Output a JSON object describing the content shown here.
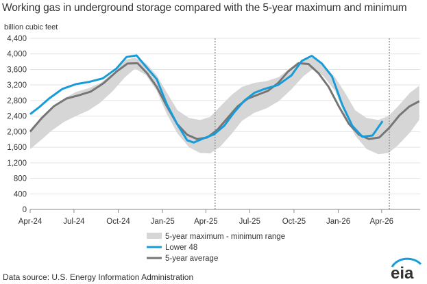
{
  "header": {
    "title": "Working gas in underground  storage compared with the 5-year maximum and minimum",
    "y_unit": "billion cubic feet"
  },
  "footer": {
    "source": "Data source:  U.S. Energy Information Administration",
    "logo_text": "eia"
  },
  "colors": {
    "range_band": "#d6d6d6",
    "lower48": "#189cd9",
    "five_year_avg": "#767676",
    "grid": "#e3e3e3",
    "divider": "#999999"
  },
  "chart_data": {
    "type": "line",
    "title": "Working gas in underground  storage compared with the 5-year maximum and minimum",
    "ylabel": "billion cubic feet",
    "xlabel": "",
    "ylim": [
      0,
      4400
    ],
    "yticks": [
      0,
      400,
      800,
      1200,
      1600,
      2000,
      2400,
      2800,
      3200,
      3600,
      4000,
      4400
    ],
    "ytick_labels": [
      "0",
      "400",
      "800",
      "1,200",
      "1,600",
      "2,000",
      "2,400",
      "2,800",
      "3,200",
      "3,600",
      "4,000",
      "4,400"
    ],
    "xlim": [
      "2024-04-01",
      "2026-06-20"
    ],
    "xticks": [
      "2024-04-01",
      "2024-07-01",
      "2024-10-01",
      "2025-01-01",
      "2025-04-01",
      "2025-07-01",
      "2025-10-01",
      "2026-01-01",
      "2026-04-01"
    ],
    "xtick_labels": [
      "Apr-24",
      "Jul-24",
      "Oct-24",
      "Jan-25",
      "Apr-25",
      "Jul-25",
      "Oct-25",
      "Jan-26",
      "Apr-26"
    ],
    "grid": "horizontal",
    "legend_position": "bottom-center",
    "dividers": [
      "2025-04-20",
      "2026-04-17"
    ],
    "series": [
      {
        "name": "5-year maximum - minimum range",
        "kind": "band",
        "x": [
          "2024-04-01",
          "2024-04-25",
          "2024-05-15",
          "2024-06-10",
          "2024-07-05",
          "2024-08-01",
          "2024-08-25",
          "2024-09-20",
          "2024-10-15",
          "2024-11-05",
          "2024-11-28",
          "2024-12-20",
          "2025-01-10",
          "2025-02-01",
          "2025-02-25",
          "2025-03-20",
          "2025-04-10",
          "2025-05-01",
          "2025-05-25",
          "2025-06-15",
          "2025-07-10",
          "2025-08-05",
          "2025-08-30",
          "2025-09-25",
          "2025-10-20",
          "2025-11-10",
          "2025-12-01",
          "2025-12-25",
          "2026-01-15",
          "2026-02-05",
          "2026-03-01",
          "2026-03-25",
          "2026-04-15",
          "2026-05-05",
          "2026-05-30",
          "2026-06-18"
        ],
        "max": [
          2050,
          2380,
          2600,
          2850,
          3020,
          3120,
          3250,
          3500,
          3850,
          3900,
          3750,
          3450,
          3000,
          2550,
          2350,
          2300,
          2380,
          2650,
          2950,
          3150,
          3250,
          3300,
          3400,
          3650,
          3850,
          3900,
          3700,
          3400,
          3000,
          2550,
          2350,
          2300,
          2400,
          2650,
          3000,
          3180
        ],
        "min": [
          1550,
          1800,
          2020,
          2250,
          2400,
          2550,
          2750,
          3050,
          3400,
          3620,
          3450,
          3050,
          2450,
          1950,
          1600,
          1450,
          1440,
          1620,
          1950,
          2280,
          2480,
          2600,
          2780,
          3080,
          3420,
          3620,
          3430,
          3050,
          2420,
          1900,
          1550,
          1420,
          1450,
          1650,
          1980,
          2300
        ]
      },
      {
        "name": "Lower 48",
        "kind": "line",
        "x": [
          "2024-04-01",
          "2024-04-19",
          "2024-05-10",
          "2024-06-07",
          "2024-07-05",
          "2024-08-02",
          "2024-08-30",
          "2024-09-27",
          "2024-10-18",
          "2024-11-08",
          "2024-11-29",
          "2024-12-20",
          "2025-01-10",
          "2025-01-31",
          "2025-02-21",
          "2025-03-07",
          "2025-03-28",
          "2025-04-18",
          "2025-05-09",
          "2025-05-30",
          "2025-06-20",
          "2025-07-11",
          "2025-08-01",
          "2025-08-29",
          "2025-09-26",
          "2025-10-17",
          "2025-11-07",
          "2025-11-28",
          "2025-12-19",
          "2026-01-09",
          "2026-01-30",
          "2026-02-20",
          "2026-03-13",
          "2026-04-03"
        ],
        "values": [
          2450,
          2620,
          2850,
          3100,
          3220,
          3280,
          3370,
          3620,
          3920,
          3960,
          3650,
          3350,
          2700,
          2200,
          1780,
          1720,
          1830,
          1930,
          2150,
          2500,
          2800,
          3000,
          3100,
          3200,
          3450,
          3820,
          3950,
          3750,
          3420,
          2700,
          2150,
          1870,
          1900,
          2270
        ]
      },
      {
        "name": "5-year average",
        "kind": "line",
        "x": [
          "2024-04-01",
          "2024-04-25",
          "2024-05-20",
          "2024-06-15",
          "2024-07-10",
          "2024-08-05",
          "2024-09-01",
          "2024-09-28",
          "2024-10-20",
          "2024-11-10",
          "2024-11-30",
          "2024-12-20",
          "2025-01-10",
          "2025-01-31",
          "2025-02-21",
          "2025-03-14",
          "2025-04-04",
          "2025-04-25",
          "2025-05-16",
          "2025-06-06",
          "2025-06-27",
          "2025-07-18",
          "2025-08-08",
          "2025-08-29",
          "2025-09-19",
          "2025-10-10",
          "2025-10-31",
          "2025-11-21",
          "2025-12-12",
          "2026-01-02",
          "2026-01-23",
          "2026-02-13",
          "2026-03-06",
          "2026-03-27",
          "2026-04-17",
          "2026-05-08",
          "2026-05-29",
          "2026-06-18"
        ],
        "values": [
          2000,
          2350,
          2650,
          2850,
          2930,
          3030,
          3250,
          3550,
          3750,
          3760,
          3500,
          3150,
          2650,
          2200,
          1920,
          1810,
          1850,
          2050,
          2350,
          2650,
          2850,
          2950,
          3050,
          3250,
          3550,
          3760,
          3740,
          3500,
          3150,
          2650,
          2200,
          1920,
          1810,
          1850,
          2100,
          2420,
          2650,
          2780
        ]
      }
    ]
  }
}
